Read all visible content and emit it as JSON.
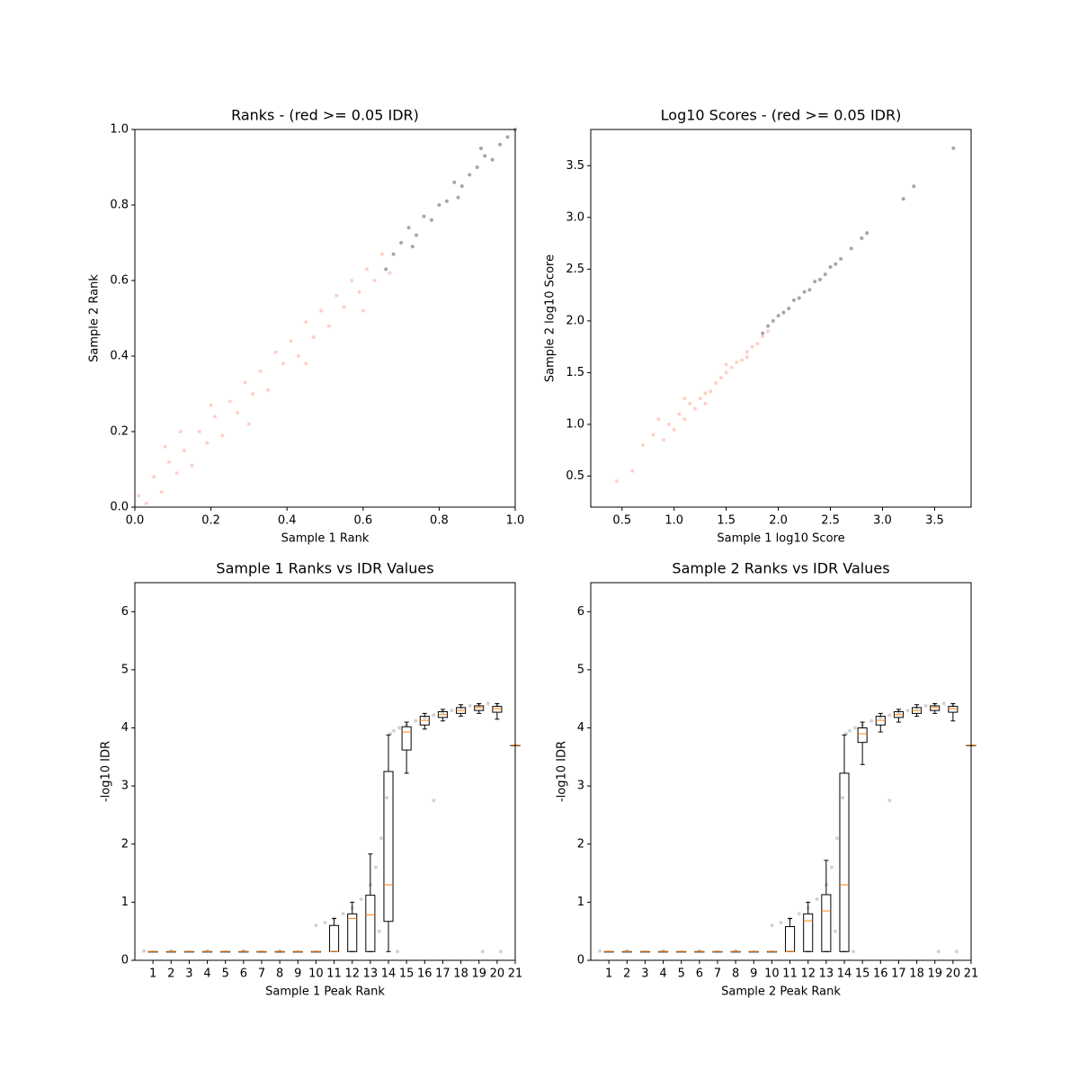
{
  "chart_data": [
    {
      "type": "scatter",
      "title": "Ranks - (red >= 0.05 IDR)",
      "xlabel": "Sample 1 Rank",
      "ylabel": "Sample 2 Rank",
      "xlim": [
        0,
        1
      ],
      "ylim": [
        0,
        1
      ],
      "xticks": [
        {
          "value": 0,
          "label": "0.0"
        },
        0.2,
        0.4,
        0.6,
        0.8,
        {
          "value": 1,
          "label": "1.0"
        }
      ],
      "yticks": [
        {
          "value": 0,
          "label": "0.0"
        },
        0.2,
        0.4,
        0.6,
        0.8,
        {
          "value": 1,
          "label": "1.0"
        }
      ],
      "series": [
        {
          "color": "#fa7a5a",
          "x": [
            0.01,
            0.03,
            0.05,
            0.07,
            0.09,
            0.11,
            0.13,
            0.15,
            0.17,
            0.19,
            0.21,
            0.23,
            0.25,
            0.27,
            0.29,
            0.31,
            0.33,
            0.35,
            0.37,
            0.39,
            0.41,
            0.43,
            0.45,
            0.47,
            0.49,
            0.51,
            0.53,
            0.55,
            0.57,
            0.59,
            0.61,
            0.63,
            0.65,
            0.67,
            0.12,
            0.3,
            0.45,
            0.6,
            0.08,
            0.2
          ],
          "values": [
            0.03,
            0.01,
            0.08,
            0.04,
            0.12,
            0.09,
            0.15,
            0.11,
            0.2,
            0.17,
            0.24,
            0.19,
            0.28,
            0.25,
            0.33,
            0.3,
            0.36,
            0.31,
            0.41,
            0.38,
            0.44,
            0.4,
            0.49,
            0.45,
            0.52,
            0.48,
            0.56,
            0.53,
            0.6,
            0.57,
            0.63,
            0.6,
            0.67,
            0.62,
            0.2,
            0.22,
            0.38,
            0.52,
            0.16,
            0.27
          ]
        },
        {
          "color": "#000000",
          "x": [
            0.66,
            0.68,
            0.7,
            0.72,
            0.74,
            0.76,
            0.78,
            0.8,
            0.82,
            0.84,
            0.86,
            0.88,
            0.9,
            0.92,
            0.94,
            0.96,
            0.98,
            1.0,
            0.73,
            0.85,
            0.91
          ],
          "values": [
            0.63,
            0.67,
            0.7,
            0.74,
            0.72,
            0.77,
            0.76,
            0.8,
            0.81,
            0.86,
            0.85,
            0.88,
            0.9,
            0.93,
            0.92,
            0.96,
            0.98,
            1.0,
            0.69,
            0.82,
            0.95
          ]
        }
      ]
    },
    {
      "type": "scatter",
      "title": "Log10 Scores - (red >= 0.05 IDR)",
      "xlabel": "Sample 1 log10 Score",
      "ylabel": "Sample 2 log10 Score",
      "xlim": [
        0.2,
        3.85
      ],
      "ylim": [
        0.2,
        3.85
      ],
      "xticks": [
        0.5,
        {
          "value": 1,
          "label": "1.0"
        },
        1.5,
        {
          "value": 2,
          "label": "2.0"
        },
        2.5,
        {
          "value": 3,
          "label": "3.0"
        },
        3.5
      ],
      "yticks": [
        0.5,
        {
          "value": 1,
          "label": "1.0"
        },
        1.5,
        {
          "value": 2,
          "label": "2.0"
        },
        2.5,
        {
          "value": 3,
          "label": "3.0"
        },
        3.5
      ],
      "series": [
        {
          "color": "#fa7a5a",
          "x": [
            0.45,
            0.6,
            0.7,
            0.8,
            0.9,
            0.95,
            1.0,
            1.05,
            1.1,
            1.15,
            1.2,
            1.25,
            1.3,
            1.35,
            1.4,
            1.45,
            1.5,
            1.55,
            1.6,
            1.65,
            1.7,
            1.75,
            1.8,
            1.85,
            1.9,
            1.1,
            1.3,
            1.5,
            1.7,
            0.85
          ],
          "values": [
            0.45,
            0.55,
            0.8,
            0.9,
            0.85,
            1.0,
            0.95,
            1.1,
            1.05,
            1.2,
            1.15,
            1.25,
            1.3,
            1.32,
            1.4,
            1.45,
            1.5,
            1.55,
            1.6,
            1.62,
            1.7,
            1.75,
            1.78,
            1.85,
            1.9,
            1.25,
            1.2,
            1.58,
            1.65,
            1.05
          ]
        },
        {
          "color": "#000000",
          "x": [
            1.85,
            1.9,
            1.95,
            2.0,
            2.05,
            2.1,
            2.15,
            2.2,
            2.25,
            2.3,
            2.35,
            2.4,
            2.45,
            2.5,
            2.55,
            2.6,
            2.7,
            2.8,
            2.85,
            3.2,
            3.3,
            3.68
          ],
          "values": [
            1.88,
            1.95,
            2.0,
            2.05,
            2.08,
            2.12,
            2.2,
            2.22,
            2.28,
            2.3,
            2.38,
            2.4,
            2.45,
            2.52,
            2.55,
            2.6,
            2.7,
            2.8,
            2.85,
            3.18,
            3.3,
            3.67
          ]
        }
      ]
    },
    {
      "type": "box",
      "title": "Sample 1 Ranks vs IDR Values",
      "xlabel": "Sample 1 Peak Rank",
      "ylabel": "-log10 IDR",
      "xlim": [
        0,
        21
      ],
      "ylim": [
        0,
        6.5
      ],
      "xticks": [
        1,
        2,
        3,
        4,
        5,
        6,
        7,
        8,
        9,
        10,
        11,
        12,
        13,
        14,
        15,
        16,
        17,
        18,
        19,
        20,
        21
      ],
      "yticks": [
        0,
        1,
        2,
        3,
        4,
        5,
        6
      ],
      "boxes": {
        "color": "#ff7f0e",
        "whislo": [
          0.15,
          0.15,
          0.15,
          0.15,
          0.15,
          0.15,
          0.15,
          0.15,
          0.15,
          0.15,
          0.15,
          0.15,
          0.15,
          0.15,
          3.22,
          3.98,
          4.12,
          4.2,
          4.25,
          4.15,
          3.7
        ],
        "q1": [
          0.15,
          0.15,
          0.15,
          0.15,
          0.15,
          0.15,
          0.15,
          0.15,
          0.15,
          0.15,
          0.15,
          0.15,
          0.15,
          0.67,
          3.62,
          4.05,
          4.18,
          4.25,
          4.3,
          4.27,
          3.7
        ],
        "median": [
          0.15,
          0.15,
          0.15,
          0.15,
          0.15,
          0.15,
          0.15,
          0.15,
          0.15,
          0.15,
          0.15,
          0.72,
          0.78,
          1.3,
          3.93,
          4.13,
          4.23,
          4.3,
          4.35,
          4.33,
          3.7
        ],
        "q3": [
          0.15,
          0.15,
          0.15,
          0.15,
          0.15,
          0.15,
          0.15,
          0.15,
          0.15,
          0.15,
          0.6,
          0.8,
          1.12,
          3.25,
          4.02,
          4.2,
          4.28,
          4.35,
          4.38,
          4.37,
          3.7
        ],
        "whishi": [
          0.15,
          0.15,
          0.15,
          0.15,
          0.15,
          0.15,
          0.15,
          0.15,
          0.15,
          0.15,
          0.72,
          1.0,
          1.83,
          3.88,
          4.1,
          4.25,
          4.32,
          4.4,
          4.42,
          4.42,
          3.7
        ]
      },
      "series": [
        {
          "color": "#808080",
          "x": [
            0.5,
            2,
            4,
            6,
            8,
            10,
            10.5,
            11,
            11.5,
            12,
            12.5,
            13,
            13.3,
            13.6,
            13.9,
            14.1,
            14.3,
            14.6,
            15,
            15.5,
            16,
            16.5,
            17,
            17.5,
            18,
            18.5,
            19,
            19.5,
            20,
            13.5,
            14.5,
            16.5,
            19.2,
            20.2
          ],
          "values": [
            0.16,
            0.16,
            0.16,
            0.16,
            0.16,
            0.6,
            0.65,
            0.72,
            0.8,
            0.9,
            1.05,
            1.3,
            1.6,
            2.1,
            2.8,
            3.9,
            3.95,
            4.0,
            4.05,
            4.12,
            4.18,
            4.22,
            4.27,
            4.3,
            4.35,
            4.38,
            4.4,
            4.42,
            4.4,
            0.5,
            0.15,
            2.75,
            0.15,
            0.15
          ]
        }
      ]
    },
    {
      "type": "box",
      "title": "Sample 2 Ranks vs IDR Values",
      "xlabel": "Sample 2 Peak Rank",
      "ylabel": "-log10 IDR",
      "xlim": [
        0,
        21
      ],
      "ylim": [
        0,
        6.5
      ],
      "xticks": [
        1,
        2,
        3,
        4,
        5,
        6,
        7,
        8,
        9,
        10,
        11,
        12,
        13,
        14,
        15,
        16,
        17,
        18,
        19,
        20,
        21
      ],
      "yticks": [
        0,
        1,
        2,
        3,
        4,
        5,
        6
      ],
      "boxes": {
        "color": "#ff7f0e",
        "whislo": [
          0.15,
          0.15,
          0.15,
          0.15,
          0.15,
          0.15,
          0.15,
          0.15,
          0.15,
          0.15,
          0.15,
          0.15,
          0.15,
          0.15,
          3.37,
          3.93,
          4.1,
          4.2,
          4.25,
          4.12,
          3.7
        ],
        "q1": [
          0.15,
          0.15,
          0.15,
          0.15,
          0.15,
          0.15,
          0.15,
          0.15,
          0.15,
          0.15,
          0.15,
          0.15,
          0.15,
          0.15,
          3.75,
          4.05,
          4.18,
          4.25,
          4.3,
          4.27,
          3.7
        ],
        "median": [
          0.15,
          0.15,
          0.15,
          0.15,
          0.15,
          0.15,
          0.15,
          0.15,
          0.15,
          0.15,
          0.15,
          0.68,
          0.85,
          1.3,
          3.9,
          4.13,
          4.23,
          4.3,
          4.35,
          4.33,
          3.7
        ],
        "q3": [
          0.15,
          0.15,
          0.15,
          0.15,
          0.15,
          0.15,
          0.15,
          0.15,
          0.15,
          0.15,
          0.58,
          0.8,
          1.13,
          3.22,
          4.0,
          4.2,
          4.28,
          4.35,
          4.38,
          4.37,
          3.7
        ],
        "whishi": [
          0.15,
          0.15,
          0.15,
          0.15,
          0.15,
          0.15,
          0.15,
          0.15,
          0.15,
          0.15,
          0.72,
          1.0,
          1.72,
          3.88,
          4.1,
          4.25,
          4.32,
          4.4,
          4.42,
          4.42,
          3.7
        ]
      },
      "series": [
        {
          "color": "#808080",
          "x": [
            0.5,
            2,
            4,
            6,
            8,
            10,
            10.5,
            11,
            11.5,
            12,
            12.5,
            13,
            13.3,
            13.6,
            13.9,
            14.1,
            14.3,
            14.6,
            15,
            15.5,
            16,
            16.5,
            17,
            17.5,
            18,
            18.5,
            19,
            19.5,
            20,
            13.5,
            14.5,
            16.5,
            19.2,
            20.2
          ],
          "values": [
            0.16,
            0.16,
            0.16,
            0.16,
            0.16,
            0.6,
            0.65,
            0.72,
            0.8,
            0.9,
            1.05,
            1.3,
            1.6,
            2.1,
            2.8,
            3.9,
            3.95,
            4.0,
            4.05,
            4.12,
            4.18,
            4.22,
            4.27,
            4.3,
            4.35,
            4.38,
            4.4,
            4.42,
            4.4,
            0.5,
            0.15,
            2.75,
            0.15,
            0.15
          ]
        }
      ]
    }
  ]
}
